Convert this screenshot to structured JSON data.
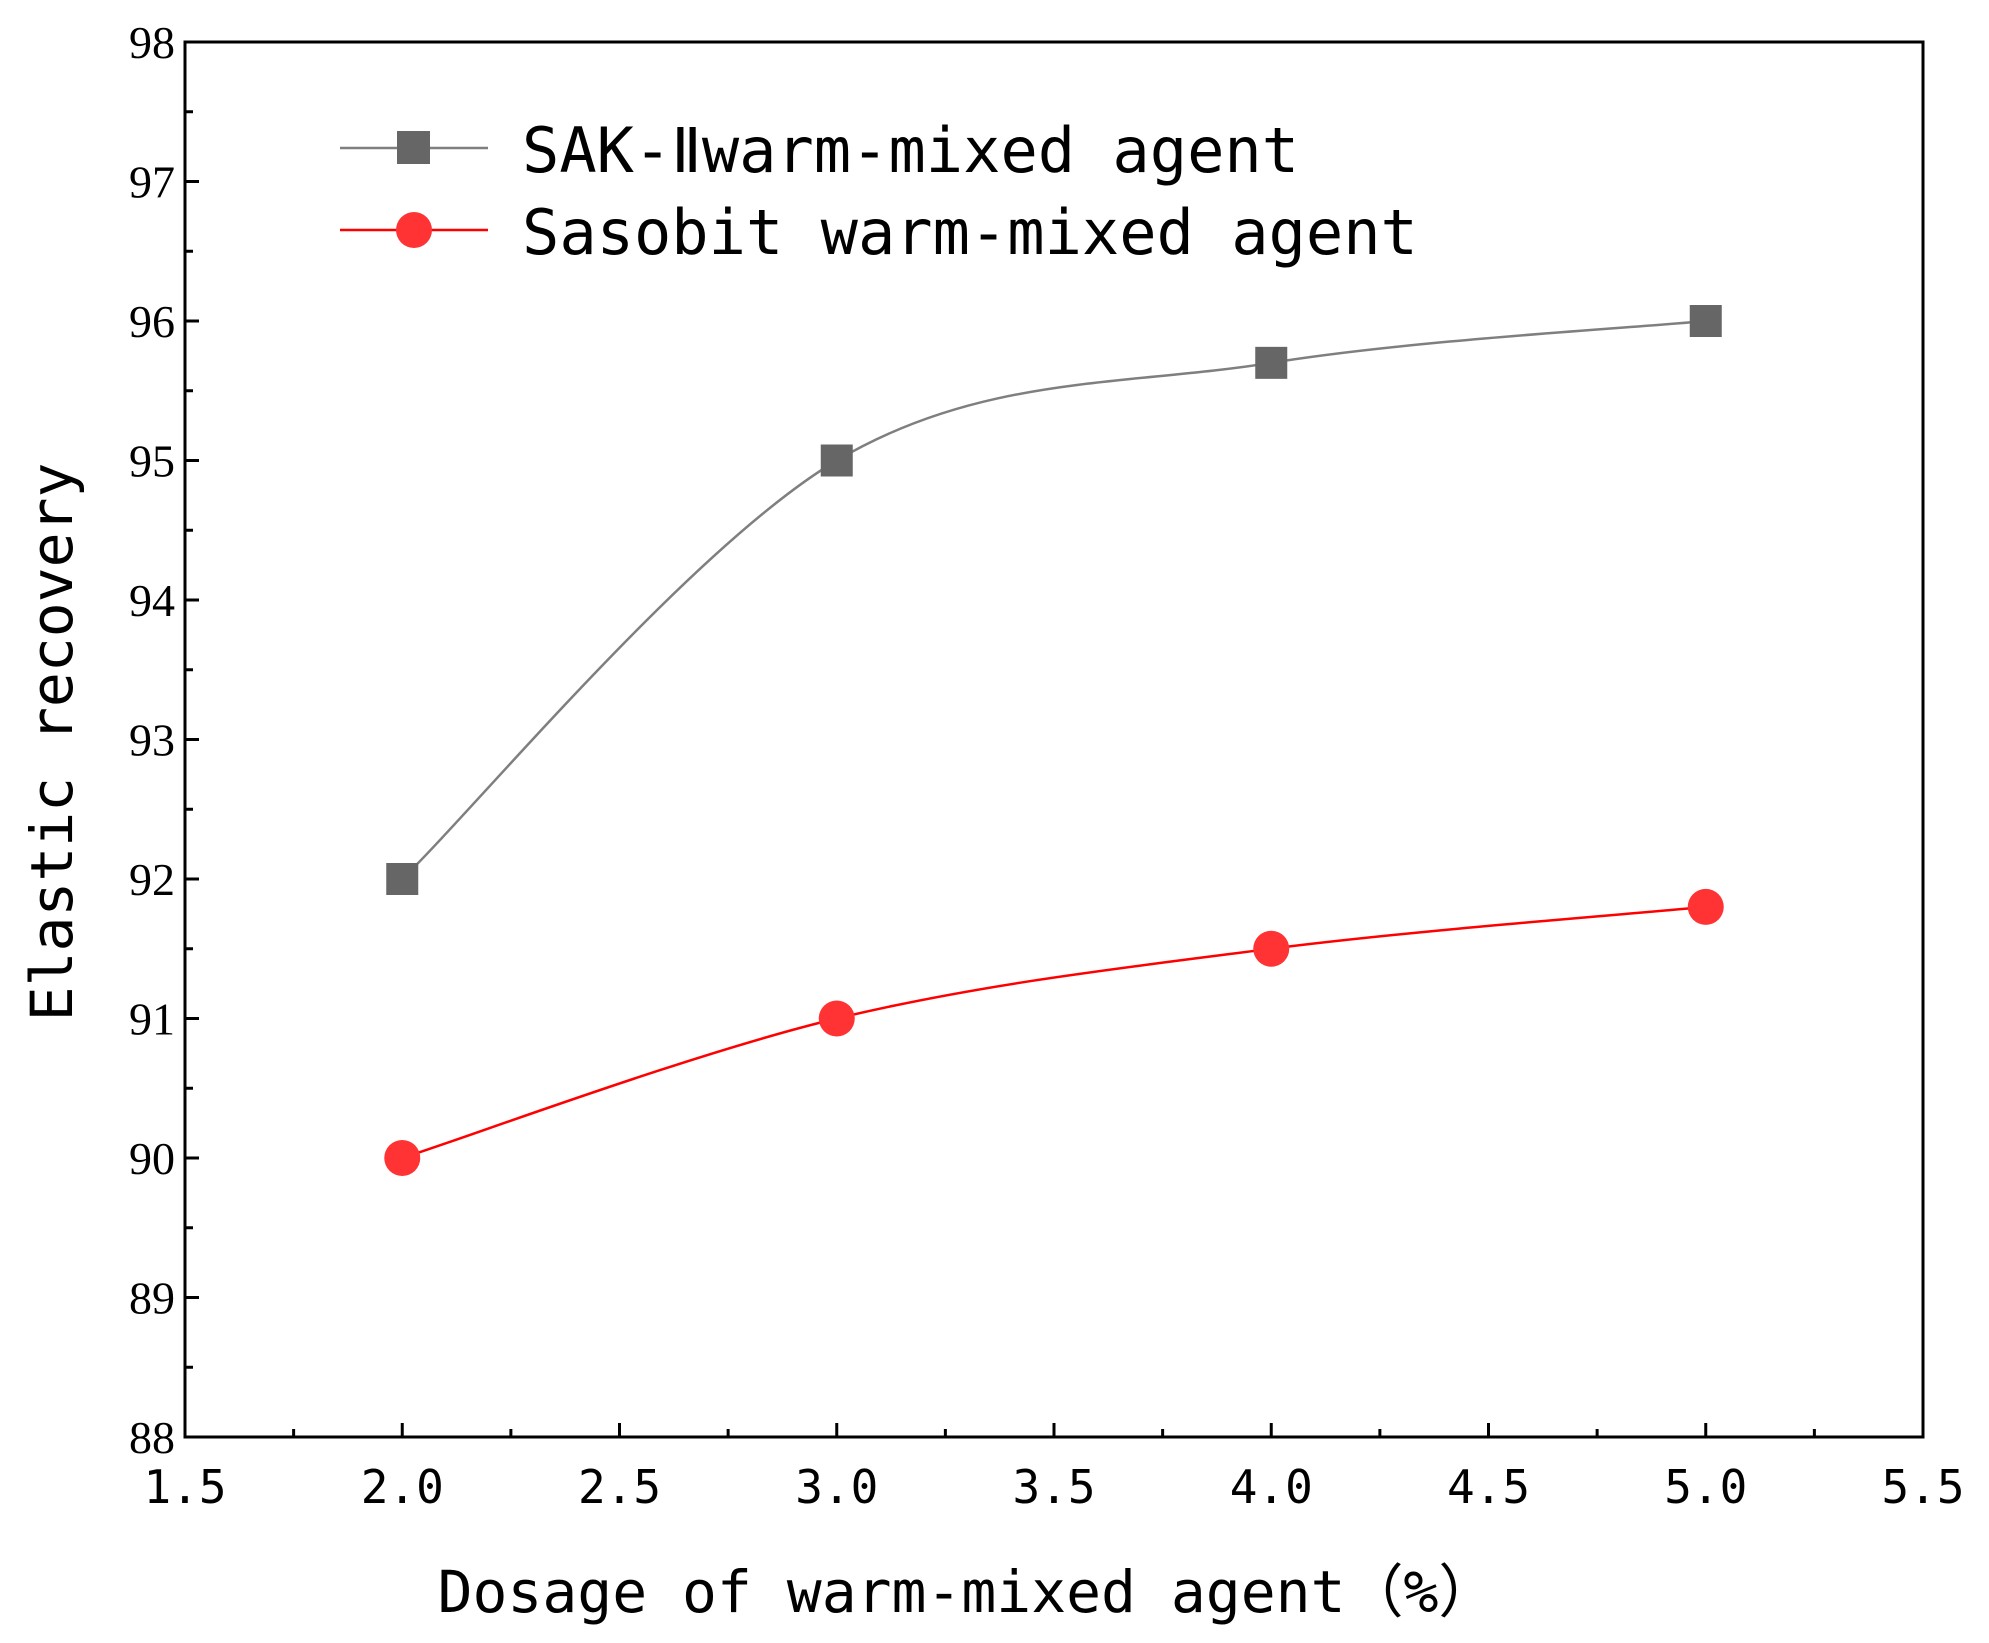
{
  "chart_data": {
    "type": "line",
    "title": "",
    "xlabel": "Dosage of warm-mixed agent（%）",
    "ylabel": "Elastic recovery",
    "xlim": [
      1.5,
      5.5
    ],
    "ylim": [
      88,
      98
    ],
    "xticks": [
      "1.5",
      "2.0",
      "2.5",
      "3.0",
      "3.5",
      "4.0",
      "4.5",
      "5.0",
      "5.5"
    ],
    "yticks": [
      "88",
      "89",
      "90",
      "91",
      "92",
      "93",
      "94",
      "95",
      "96",
      "97",
      "98"
    ],
    "x": [
      2.0,
      3.0,
      4.0,
      5.0
    ],
    "legend_position": "top-left",
    "series": [
      {
        "name": "SAK-Ⅱwarm-mixed agent",
        "marker": "square",
        "color": "#666666",
        "line_color": "#7f7f7f",
        "values": [
          92.0,
          95.0,
          95.7,
          96.0
        ]
      },
      {
        "name": "Sasobit warm-mixed agent",
        "marker": "circle",
        "color": "#ff3333",
        "line_color": "#ff0000",
        "values": [
          90.0,
          91.0,
          91.5,
          91.8
        ]
      }
    ]
  }
}
